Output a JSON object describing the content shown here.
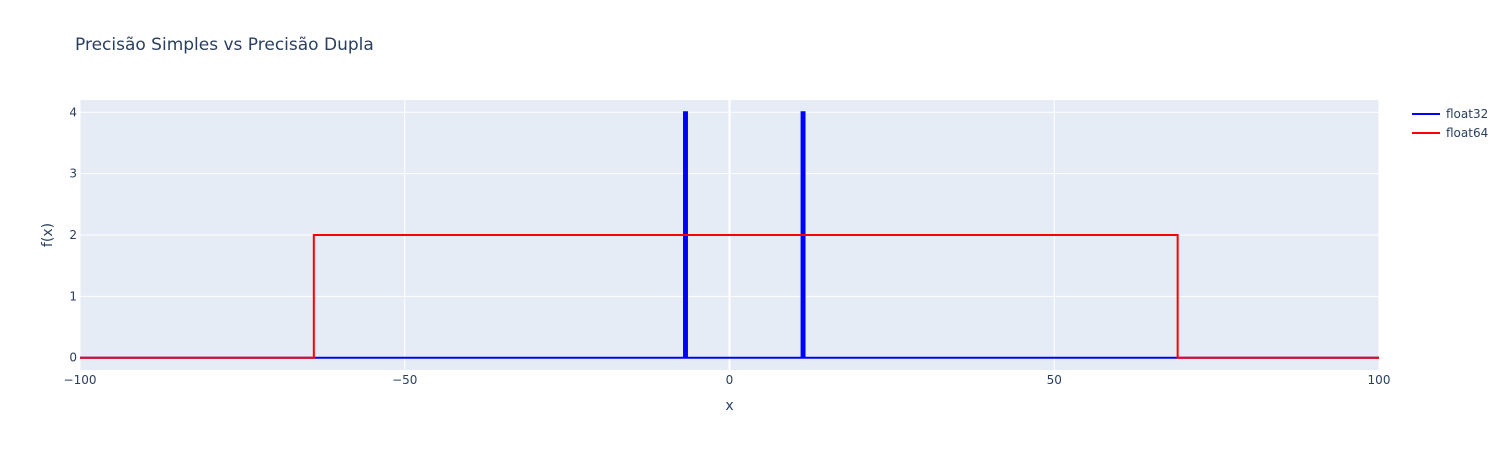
{
  "chart_data": {
    "type": "line",
    "title": "Precisão Simples vs Precisão Dupla",
    "xlabel": "x",
    "ylabel": "f(x)",
    "xlim": [
      -100,
      100
    ],
    "ylim": [
      -0.2,
      4.2
    ],
    "xticks": [
      -100,
      -50,
      0,
      50,
      100
    ],
    "yticks": [
      0,
      1,
      2,
      3,
      4
    ],
    "xtick_labels": [
      "−100",
      "−50",
      "0",
      "50",
      "100"
    ],
    "ytick_labels": [
      "0",
      "1",
      "2",
      "3",
      "4"
    ],
    "grid": true,
    "legend": "top-right",
    "series": [
      {
        "name": "float32",
        "color": "#0000ff",
        "x": [
          -100,
          -7.0,
          -7.0,
          -6.95,
          -6.95,
          -6.9,
          -6.9,
          -6.85,
          -6.85,
          -6.8,
          -6.8,
          -6.75,
          -6.75,
          -6.7,
          -6.7,
          -6.65,
          -6.65,
          -6.6,
          -6.6,
          -6.55,
          -6.55,
          -6.5,
          -6.5,
          11.1,
          11.1,
          11.15,
          11.15,
          11.2,
          11.2,
          11.25,
          11.25,
          11.3,
          11.3,
          11.35,
          11.35,
          11.4,
          11.4,
          11.45,
          11.45,
          11.5,
          11.5,
          11.55,
          11.55,
          11.6,
          11.6,
          100
        ],
        "y": [
          0,
          0,
          4,
          4,
          0,
          0,
          4,
          4,
          0,
          0,
          4,
          4,
          0,
          0,
          4,
          4,
          0,
          0,
          4,
          4,
          0,
          0,
          0,
          0,
          4,
          4,
          0,
          0,
          4,
          4,
          0,
          0,
          4,
          4,
          0,
          0,
          4,
          4,
          0,
          0,
          4,
          4,
          0,
          0,
          0,
          0
        ]
      },
      {
        "name": "float64",
        "color": "#ff0000",
        "x": [
          -100,
          -64,
          -64,
          69,
          69,
          100
        ],
        "y": [
          0,
          0,
          2,
          2,
          0,
          0
        ]
      }
    ]
  }
}
